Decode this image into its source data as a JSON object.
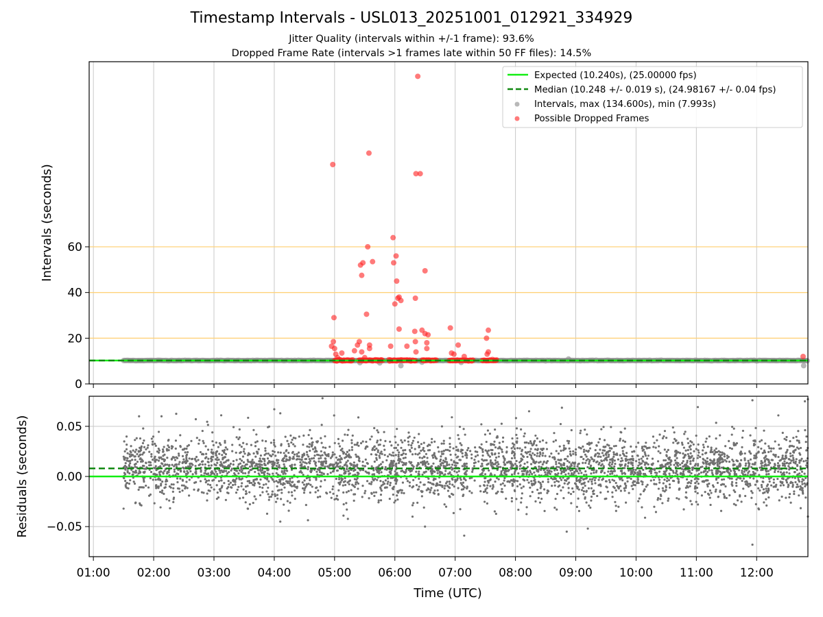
{
  "title": "Timestamp Intervals - USL013_20251001_012921_334929",
  "subtitle_1": "Jitter Quality (intervals within +/-1 frame): 93.6%",
  "subtitle_2": "Dropped Frame Rate (intervals >1 frames late within 50 FF files): 14.5%",
  "colors": {
    "expected": "#11ee11",
    "median": "#118811",
    "intervals": "#888888",
    "dropped": "#ff2222",
    "threshold_lines": "#ffd27a",
    "grid": "#c8c8c8"
  },
  "chart_data": [
    {
      "type": "scatter",
      "panel": "top",
      "ylabel": "Intervals (seconds)",
      "yticks": [
        0,
        20,
        40,
        60
      ],
      "ylim": [
        0,
        141
      ],
      "xlim": [
        0.93,
        12.85
      ],
      "xticks": [
        1,
        2,
        3,
        4,
        5,
        6,
        7,
        8,
        9,
        10,
        11,
        12
      ],
      "grid": "vertical",
      "horizontal_reference_lines": [
        20,
        40,
        60
      ],
      "legend_position": "top-right",
      "legend": [
        "Expected (10.240s), (25.00000 fps)",
        "Median (10.248 +/- 0.019 s), (24.98167 +/- 0.04 fps)",
        "Intervals, max (134.600s), min (7.993s)",
        "Possible Dropped Frames"
      ],
      "expected_value": 10.24,
      "median_value": 10.248,
      "series": [
        {
          "name": "Intervals, max (134.600s), min (7.993s)",
          "x_range": [
            1.5,
            12.85
          ],
          "typical_value": 10.24,
          "outliers": [
            [
              6.1,
              7.99
            ],
            [
              8.88,
              10.9
            ],
            [
              12.78,
              7.99
            ],
            [
              5.42,
              9.3
            ],
            [
              5.75,
              9.2
            ],
            [
              6.45,
              9.5
            ],
            [
              7.1,
              9.4
            ]
          ]
        },
        {
          "name": "Possible Dropped Frames",
          "dense_ranges": [
            [
              5.0,
              5.3,
              10.3
            ],
            [
              5.4,
              5.8,
              10.3
            ],
            [
              5.9,
              6.35,
              10.3
            ],
            [
              6.45,
              6.7,
              10.3
            ],
            [
              6.9,
              7.3,
              10.3
            ],
            [
              7.45,
              7.7,
              10.3
            ]
          ],
          "points": [
            [
              4.97,
              96
            ],
            [
              5.57,
              101
            ],
            [
              6.38,
              134.6
            ],
            [
              6.35,
              92
            ],
            [
              6.42,
              92
            ],
            [
              5.55,
              60
            ],
            [
              5.97,
              64
            ],
            [
              6.02,
              56
            ],
            [
              5.43,
              52
            ],
            [
              5.47,
              53
            ],
            [
              5.63,
              53.5
            ],
            [
              5.98,
              53
            ],
            [
              5.45,
              47.5
            ],
            [
              6.5,
              49.5
            ],
            [
              6.03,
              45
            ],
            [
              6.07,
              38
            ],
            [
              6.05,
              37.5
            ],
            [
              6.1,
              36.5
            ],
            [
              6.34,
              37.5
            ],
            [
              6.0,
              35
            ],
            [
              5.53,
              30.5
            ],
            [
              4.99,
              29
            ],
            [
              6.92,
              24.5
            ],
            [
              6.07,
              24
            ],
            [
              7.55,
              23.5
            ],
            [
              6.45,
              23.5
            ],
            [
              6.33,
              23
            ],
            [
              6.5,
              22
            ],
            [
              6.55,
              21.5
            ],
            [
              7.52,
              20
            ],
            [
              4.98,
              18.5
            ],
            [
              5.41,
              18.5
            ],
            [
              6.34,
              18.5
            ],
            [
              6.53,
              18
            ],
            [
              5.38,
              17
            ],
            [
              5.58,
              17
            ],
            [
              5.93,
              16.5
            ],
            [
              6.2,
              16.5
            ],
            [
              7.05,
              17
            ],
            [
              4.95,
              16.5
            ],
            [
              5.0,
              15.5
            ],
            [
              5.58,
              15.5
            ],
            [
              6.53,
              15.5
            ],
            [
              5.33,
              14.5
            ],
            [
              5.45,
              14
            ],
            [
              6.35,
              14
            ],
            [
              6.98,
              13
            ],
            [
              7.53,
              13
            ],
            [
              5.02,
              13
            ],
            [
              5.12,
              13.5
            ],
            [
              6.94,
              13.5
            ],
            [
              7.15,
              12
            ],
            [
              7.55,
              14
            ],
            [
              12.77,
              12
            ],
            [
              5.05,
              11.5
            ],
            [
              5.5,
              11.5
            ]
          ]
        }
      ]
    },
    {
      "type": "scatter",
      "panel": "bottom",
      "xlabel": "Time (UTC)",
      "ylabel": "Residuals (seconds)",
      "ylim": [
        -0.08,
        0.08
      ],
      "yticks": [
        -0.05,
        0.0,
        0.05
      ],
      "ytick_labels": [
        "−0.05",
        "0.00",
        "0.05"
      ],
      "xlim": [
        0.93,
        12.85
      ],
      "xticks": [
        1,
        2,
        3,
        4,
        5,
        6,
        7,
        8,
        9,
        10,
        11,
        12
      ],
      "xtick_labels": [
        "01:00",
        "02:00",
        "03:00",
        "04:00",
        "05:00",
        "06:00",
        "07:00",
        "08:00",
        "09:00",
        "10:00",
        "11:00",
        "12:00"
      ],
      "grid": "both",
      "expected_residual": 0.0,
      "median_residual": 0.008,
      "residual_distribution": {
        "x_range": [
          1.5,
          12.85
        ],
        "center": 0.008,
        "spread": 0.016,
        "approx_count": 4000,
        "gap_ranges": [
          [
            5.4,
            5.6
          ],
          [
            7.2,
            7.4
          ]
        ]
      },
      "notable_points": [
        [
          4.8,
          0.078
        ],
        [
          11.93,
          0.076
        ],
        [
          12.8,
          0.075
        ],
        [
          12.85,
          0.077
        ],
        [
          4.0,
          0.067
        ],
        [
          4.1,
          0.063
        ],
        [
          3.12,
          0.061
        ],
        [
          2.13,
          0.06
        ],
        [
          8.85,
          -0.055
        ],
        [
          11.93,
          -0.068
        ],
        [
          7.15,
          -0.059
        ],
        [
          6.5,
          -0.05
        ],
        [
          9.2,
          -0.052
        ],
        [
          12.85,
          -0.04
        ],
        [
          4.1,
          -0.045
        ]
      ]
    }
  ]
}
